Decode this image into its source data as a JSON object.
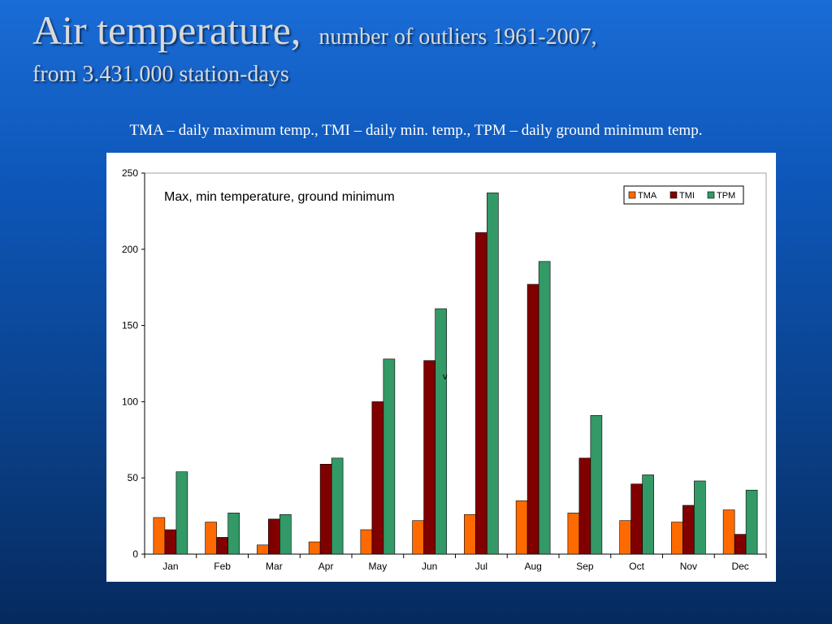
{
  "slide": {
    "title_main": "Air temperature,",
    "title_sub1": "number of outliers 1961-2007,",
    "title_sub2": "from 3.431.000 station-days",
    "caption": "TMA – daily maximum temp., TMI – daily min. temp., TPM – daily ground minimum temp."
  },
  "chart_data": {
    "type": "bar",
    "title": "Max, min temperature, ground minimum",
    "categories": [
      "Jan",
      "Feb",
      "Mar",
      "Apr",
      "May",
      "Jun",
      "Jul",
      "Aug",
      "Sep",
      "Oct",
      "Nov",
      "Dec"
    ],
    "series": [
      {
        "name": "TMA",
        "color": "#ff6a00",
        "values": [
          24,
          21,
          6,
          8,
          16,
          22,
          26,
          35,
          27,
          22,
          21,
          29
        ]
      },
      {
        "name": "TMI",
        "color": "#800000",
        "values": [
          16,
          11,
          23,
          59,
          100,
          127,
          211,
          177,
          63,
          46,
          32,
          13
        ]
      },
      {
        "name": "TPM",
        "color": "#339966",
        "values": [
          54,
          27,
          26,
          63,
          128,
          161,
          237,
          192,
          91,
          52,
          48,
          42
        ]
      }
    ],
    "ylim": [
      0,
      250
    ],
    "yticks": [
      0,
      50,
      100,
      150,
      200,
      250
    ],
    "grid": false,
    "legend_position": "top-right",
    "annotation": "v"
  }
}
